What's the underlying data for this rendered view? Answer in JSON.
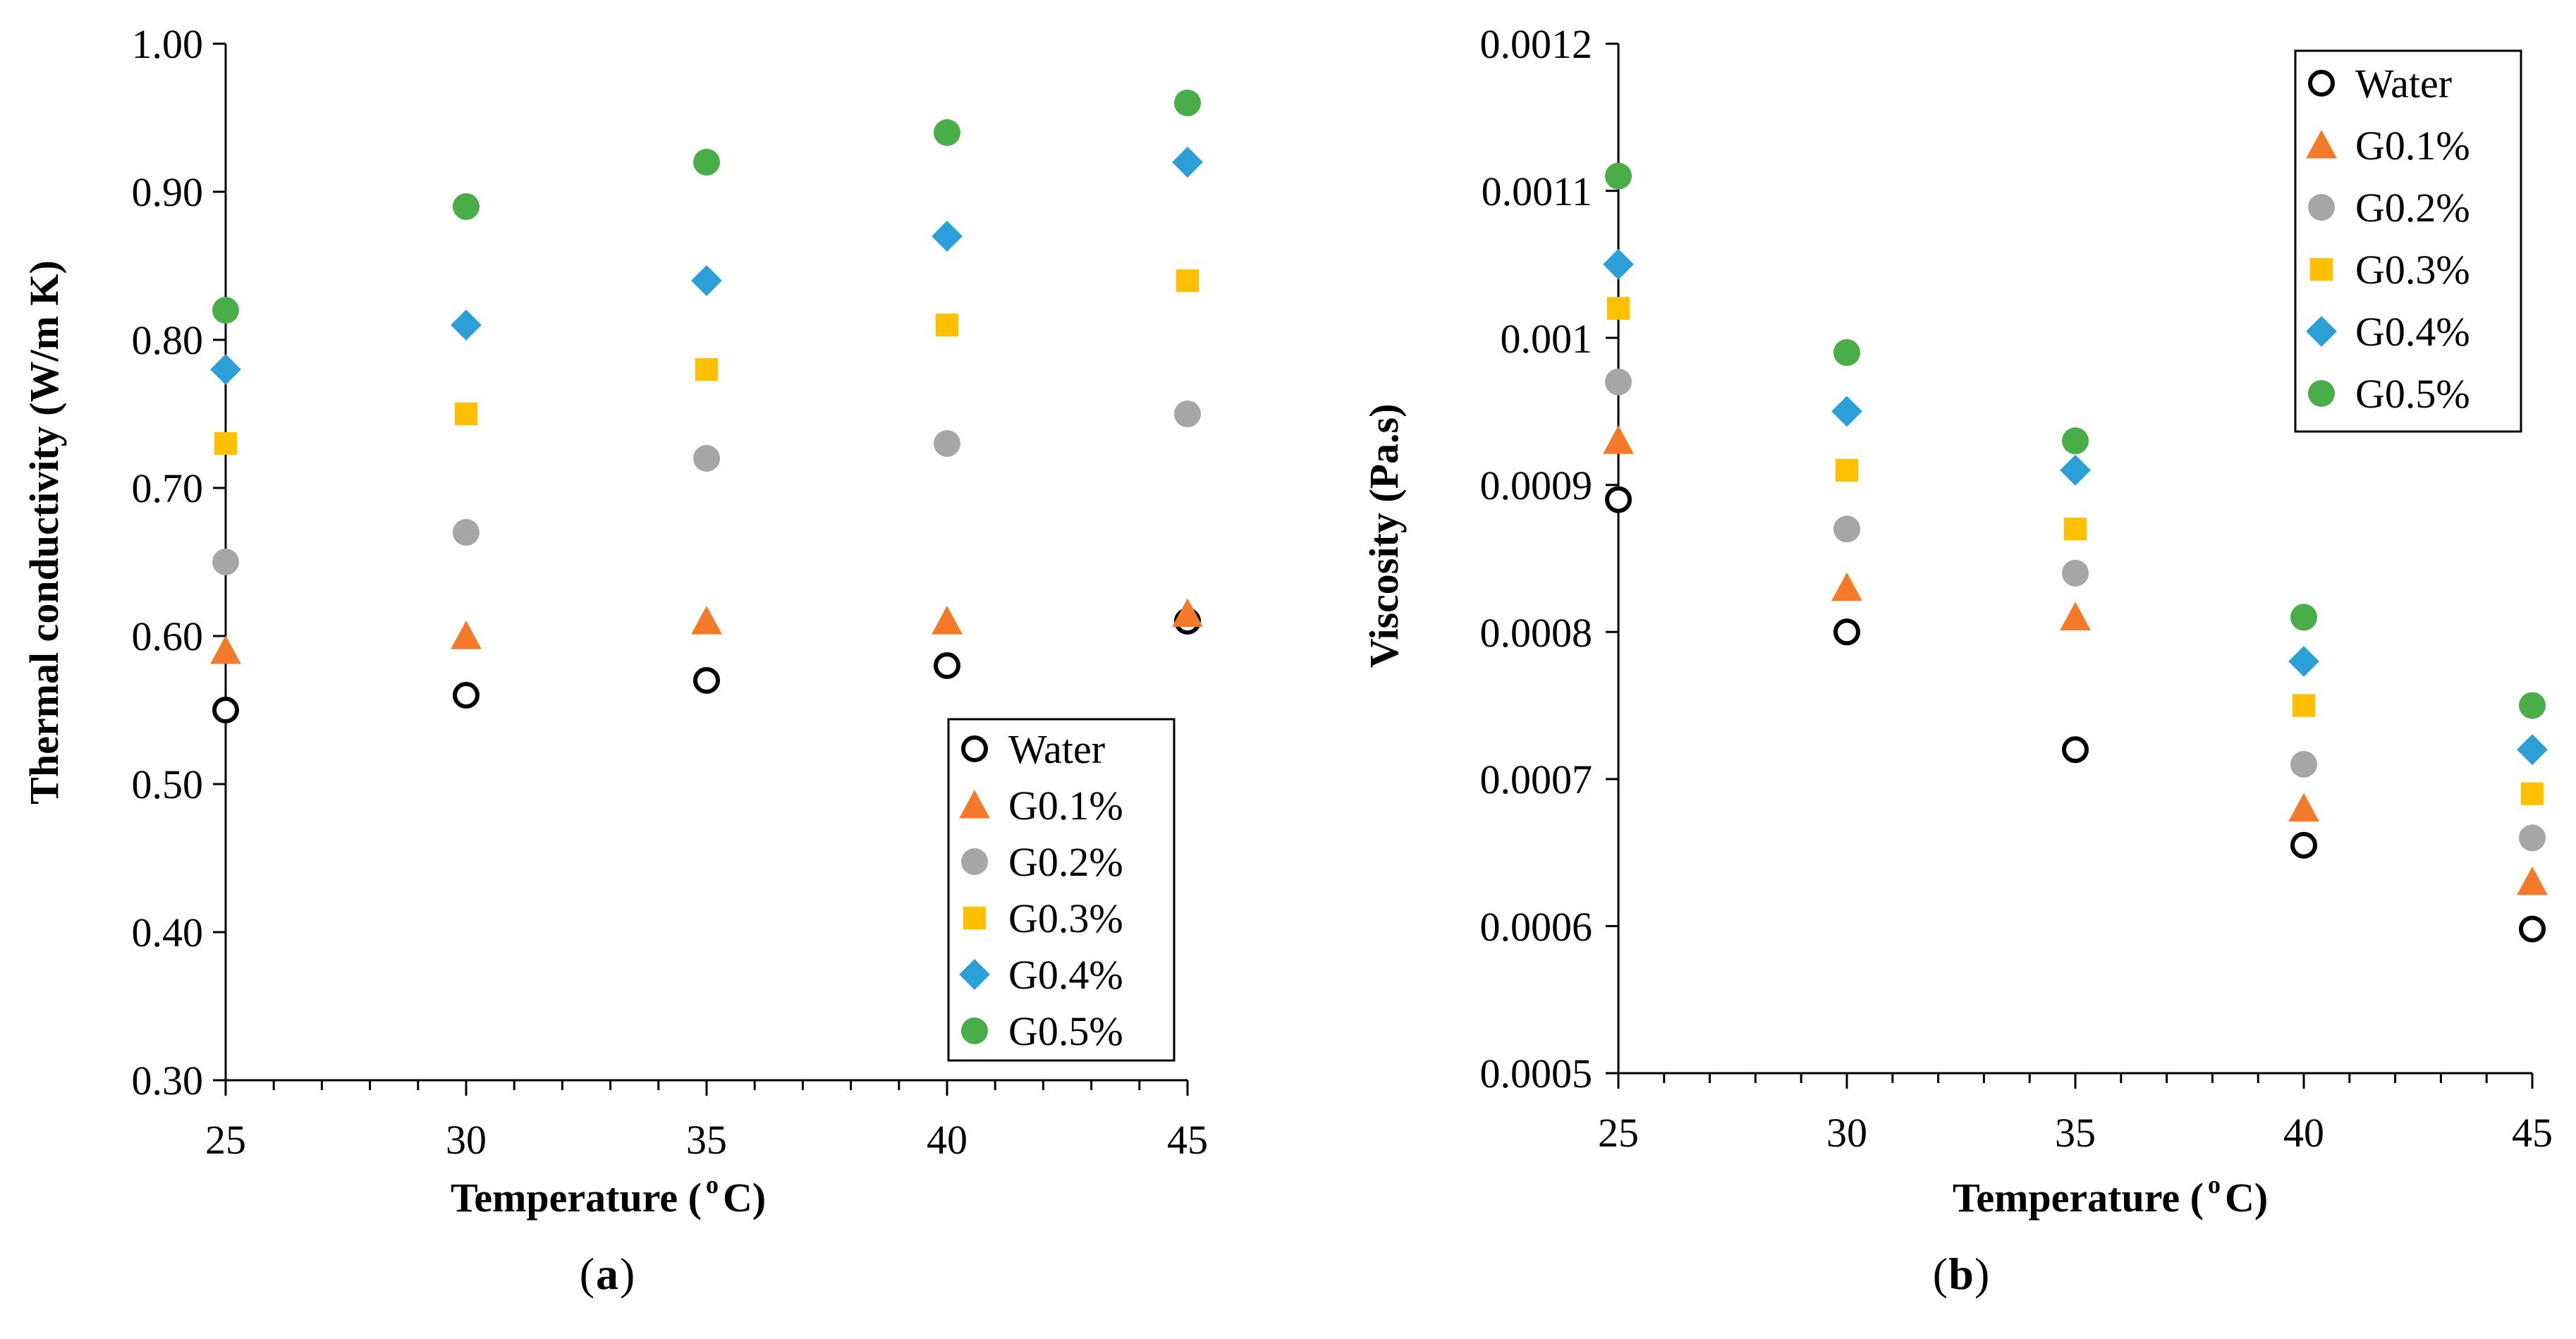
{
  "chart_data": [
    {
      "type": "scatter",
      "panel_label_parts": [
        "(",
        "a",
        ")"
      ],
      "xlabel_parts": [
        "Temperature (",
        "o",
        "C)"
      ],
      "ylabel": "Thermal conductivity (W/m K)",
      "x": [
        25,
        30,
        35,
        40,
        45
      ],
      "xlim": [
        25,
        45
      ],
      "ylim": [
        0.3,
        1.0
      ],
      "x_ticks": [
        "25",
        "30",
        "35",
        "40",
        "45"
      ],
      "y_ticks": [
        "0.30",
        "0.40",
        "0.50",
        "0.60",
        "0.70",
        "0.80",
        "0.90",
        "1.00"
      ],
      "grid": false,
      "legend_position": "bottom-right",
      "series": [
        {
          "name": "Water",
          "marker": "circle-open",
          "color": "#000000",
          "values": [
            0.55,
            0.56,
            0.57,
            0.58,
            0.61
          ]
        },
        {
          "name": "G0.1%",
          "marker": "triangle",
          "color": "#f47a2a",
          "values": [
            0.59,
            0.6,
            0.61,
            0.61,
            0.615
          ]
        },
        {
          "name": "G0.2%",
          "marker": "circle",
          "color": "#a6a6a6",
          "values": [
            0.65,
            0.67,
            0.72,
            0.73,
            0.75
          ]
        },
        {
          "name": "G0.3%",
          "marker": "square",
          "color": "#ffc000",
          "values": [
            0.73,
            0.75,
            0.78,
            0.81,
            0.84
          ]
        },
        {
          "name": "G0.4%",
          "marker": "diamond",
          "color": "#2a9fd8",
          "values": [
            0.78,
            0.81,
            0.84,
            0.87,
            0.92
          ]
        },
        {
          "name": "G0.5%",
          "marker": "circle",
          "color": "#4aae48",
          "values": [
            0.82,
            0.89,
            0.92,
            0.94,
            0.96
          ]
        }
      ]
    },
    {
      "type": "scatter",
      "panel_label_parts": [
        "(",
        "b",
        ")"
      ],
      "xlabel_parts": [
        "Temperature (",
        "o",
        "C)"
      ],
      "ylabel": "Viscosity (Pa.s)",
      "x": [
        25,
        30,
        35,
        40,
        45
      ],
      "xlim": [
        25,
        45
      ],
      "ylim": [
        0.0005,
        0.0012
      ],
      "x_ticks": [
        "25",
        "30",
        "35",
        "40",
        "45"
      ],
      "y_ticks": [
        "0.0005",
        "0.0006",
        "0.0007",
        "0.0008",
        "0.0009",
        "0.001",
        "0.0011",
        "0.0012"
      ],
      "grid": false,
      "legend_position": "top-right",
      "series": [
        {
          "name": "Water",
          "marker": "circle-open",
          "color": "#000000",
          "values": [
            0.00089,
            0.0008,
            0.00072,
            0.000655,
            0.000598
          ]
        },
        {
          "name": "G0.1%",
          "marker": "triangle",
          "color": "#f47a2a",
          "values": [
            0.00093,
            0.00083,
            0.00081,
            0.00068,
            0.00063
          ]
        },
        {
          "name": "G0.2%",
          "marker": "circle",
          "color": "#a6a6a6",
          "values": [
            0.00097,
            0.00087,
            0.00084,
            0.00071,
            0.00066
          ]
        },
        {
          "name": "G0.3%",
          "marker": "square",
          "color": "#ffc000",
          "values": [
            0.00102,
            0.00091,
            0.00087,
            0.00075,
            0.00069
          ]
        },
        {
          "name": "G0.4%",
          "marker": "diamond",
          "color": "#2a9fd8",
          "values": [
            0.00105,
            0.00095,
            0.00091,
            0.00078,
            0.00072
          ]
        },
        {
          "name": "G0.5%",
          "marker": "circle",
          "color": "#4aae48",
          "values": [
            0.00111,
            0.00099,
            0.00093,
            0.00081,
            0.00075
          ]
        }
      ]
    }
  ]
}
